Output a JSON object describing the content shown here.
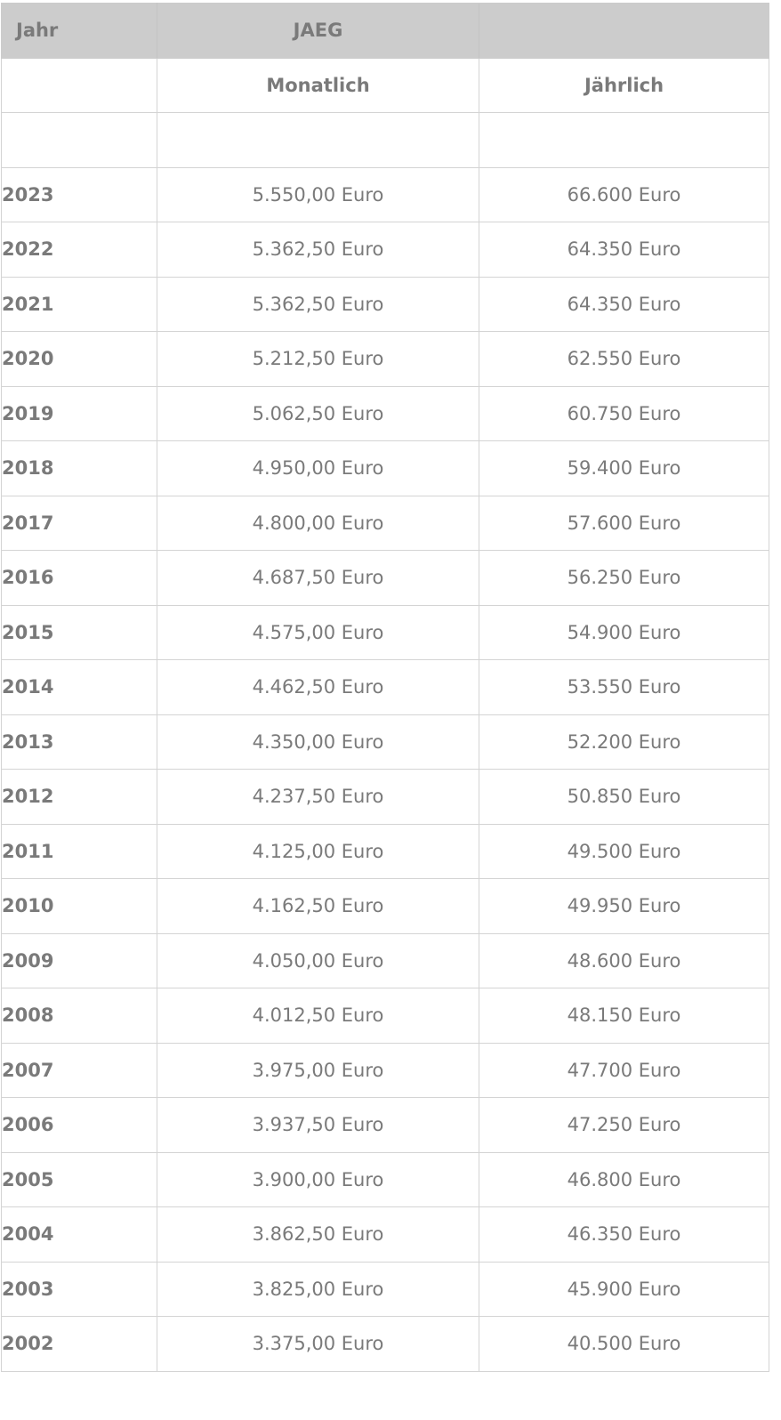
{
  "table": {
    "header": {
      "col1": "Jahr",
      "col2": "JAEG",
      "col3": ""
    },
    "subheader": {
      "monthly": "Monatlich",
      "yearly": "Jährlich"
    },
    "rows": [
      {
        "year": "2023",
        "monthly": "5.550,00 Euro",
        "yearly": "66.600 Euro"
      },
      {
        "year": "2022",
        "monthly": "5.362,50 Euro",
        "yearly": "64.350 Euro"
      },
      {
        "year": "2021",
        "monthly": "5.362,50 Euro",
        "yearly": "64.350 Euro"
      },
      {
        "year": "2020",
        "monthly": "5.212,50 Euro",
        "yearly": "62.550 Euro"
      },
      {
        "year": "2019",
        "monthly": "5.062,50 Euro",
        "yearly": "60.750 Euro"
      },
      {
        "year": "2018",
        "monthly": "4.950,00 Euro",
        "yearly": "59.400 Euro"
      },
      {
        "year": "2017",
        "monthly": "4.800,00 Euro",
        "yearly": "57.600 Euro"
      },
      {
        "year": "2016",
        "monthly": "4.687,50 Euro",
        "yearly": "56.250 Euro"
      },
      {
        "year": "2015",
        "monthly": "4.575,00 Euro",
        "yearly": "54.900 Euro"
      },
      {
        "year": "2014",
        "monthly": "4.462,50 Euro",
        "yearly": "53.550 Euro"
      },
      {
        "year": "2013",
        "monthly": "4.350,00 Euro",
        "yearly": "52.200 Euro"
      },
      {
        "year": "2012",
        "monthly": "4.237,50 Euro",
        "yearly": "50.850 Euro"
      },
      {
        "year": "2011",
        "monthly": "4.125,00 Euro",
        "yearly": "49.500 Euro"
      },
      {
        "year": "2010",
        "monthly": "4.162,50 Euro",
        "yearly": "49.950 Euro"
      },
      {
        "year": "2009",
        "monthly": "4.050,00 Euro",
        "yearly": "48.600 Euro"
      },
      {
        "year": "2008",
        "monthly": "4.012,50 Euro",
        "yearly": "48.150 Euro"
      },
      {
        "year": "2007",
        "monthly": "3.975,00 Euro",
        "yearly": "47.700 Euro"
      },
      {
        "year": "2006",
        "monthly": "3.937,50 Euro",
        "yearly": "47.250 Euro"
      },
      {
        "year": "2005",
        "monthly": "3.900,00 Euro",
        "yearly": "46.800 Euro"
      },
      {
        "year": "2004",
        "monthly": "3.862,50 Euro",
        "yearly": "46.350 Euro"
      },
      {
        "year": "2003",
        "monthly": "3.825,00 Euro",
        "yearly": "45.900 Euro"
      },
      {
        "year": "2002",
        "monthly": "3.375,00 Euro",
        "yearly": "40.500 Euro"
      }
    ]
  }
}
